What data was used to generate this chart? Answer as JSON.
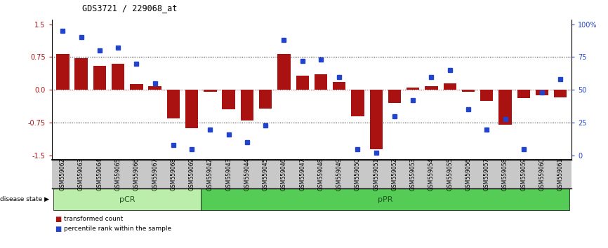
{
  "title": "GDS3721 / 229068_at",
  "samples": [
    "GSM559062",
    "GSM559063",
    "GSM559064",
    "GSM559065",
    "GSM559066",
    "GSM559067",
    "GSM559068",
    "GSM559069",
    "GSM559042",
    "GSM559043",
    "GSM559044",
    "GSM559045",
    "GSM559046",
    "GSM559047",
    "GSM559048",
    "GSM559049",
    "GSM559050",
    "GSM559051",
    "GSM559052",
    "GSM559053",
    "GSM559054",
    "GSM559055",
    "GSM559056",
    "GSM559057",
    "GSM559058",
    "GSM559059",
    "GSM559060",
    "GSM559061"
  ],
  "bar_values": [
    0.82,
    0.72,
    0.55,
    0.6,
    0.13,
    0.09,
    -0.65,
    -0.88,
    -0.05,
    -0.45,
    -0.7,
    -0.42,
    0.82,
    0.32,
    0.35,
    0.18,
    -0.6,
    -1.35,
    -0.3,
    0.05,
    0.08,
    0.15,
    -0.05,
    -0.25,
    -0.8,
    -0.18,
    -0.12,
    -0.17
  ],
  "blue_values": [
    95,
    90,
    80,
    82,
    70,
    55,
    8,
    5,
    20,
    16,
    10,
    23,
    88,
    72,
    73,
    60,
    5,
    2,
    30,
    42,
    60,
    65,
    35,
    20,
    28,
    5,
    48,
    58
  ],
  "pCR_count": 8,
  "pPR_count": 20,
  "bar_color": "#aa1111",
  "blue_color": "#2244cc",
  "ylim": [
    -1.6,
    1.6
  ],
  "yticks_left": [
    -1.5,
    -0.75,
    0.0,
    0.75,
    1.5
  ],
  "yticks_right": [
    0,
    25,
    50,
    75,
    100
  ],
  "pCR_color": "#bbeeaa",
  "pPR_color": "#55cc55",
  "bg_color": "#c8c8c8",
  "fig_width": 8.66,
  "fig_height": 3.54,
  "dpi": 100
}
